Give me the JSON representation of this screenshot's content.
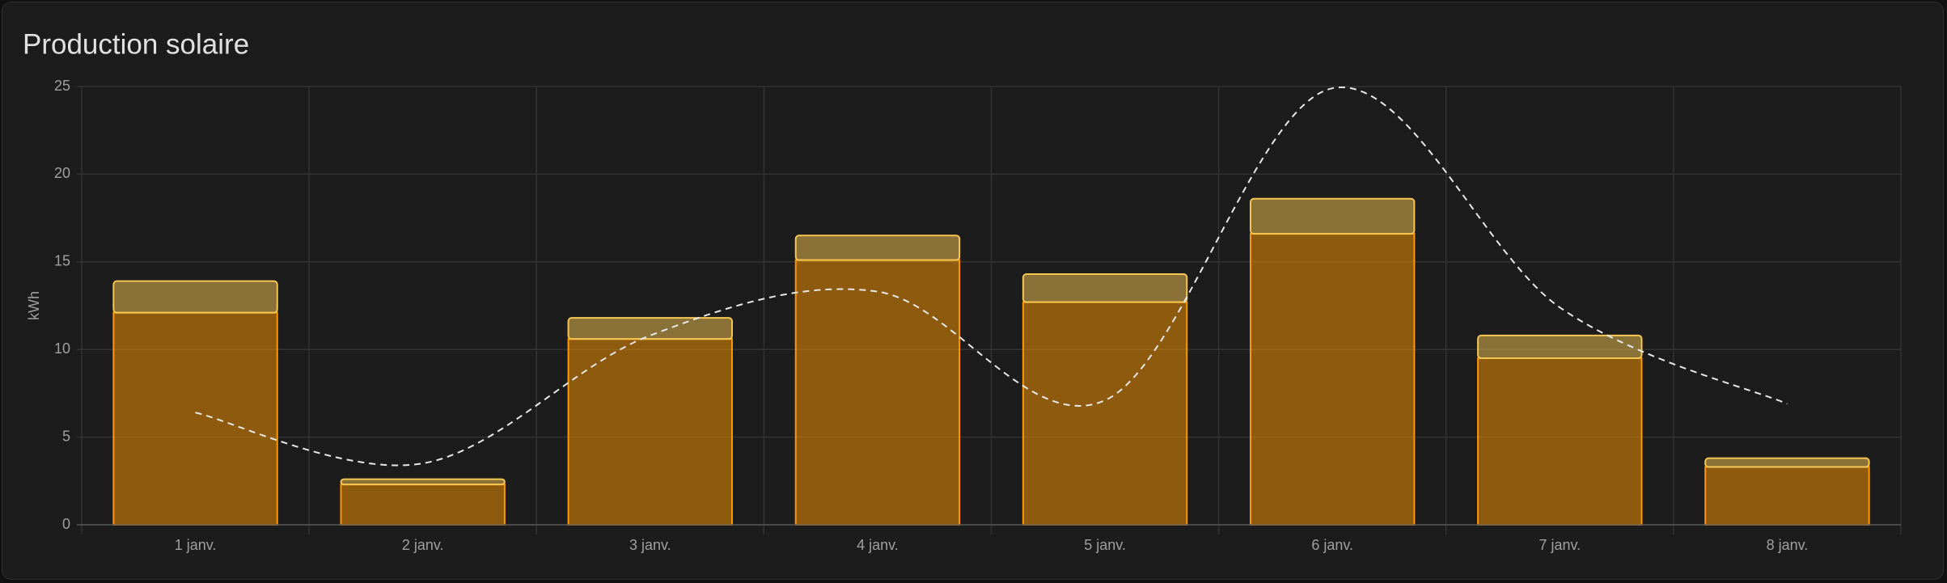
{
  "chart_data": {
    "type": "bar",
    "title": "Production solaire",
    "y_label": "kWh",
    "categories": [
      "1 janv.",
      "2 janv.",
      "3 janv.",
      "4 janv.",
      "5 janv.",
      "6 janv.",
      "7 janv.",
      "8 janv."
    ],
    "series": [
      {
        "color": "#ff9800",
        "values": [
          12.1,
          2.3,
          10.6,
          15.1,
          12.7,
          16.6,
          9.5,
          3.3
        ]
      },
      {
        "color": "#f5c652",
        "values": [
          1.8,
          0.3,
          1.2,
          1.4,
          1.6,
          2.0,
          1.3,
          0.5
        ]
      },
      {
        "type": "line",
        "color": "#e8e8e8",
        "dashed": true,
        "values": [
          6.4,
          3.5,
          10.8,
          13.3,
          7.1,
          24.9,
          12.4,
          6.9
        ]
      }
    ],
    "ylim": [
      0,
      25
    ],
    "yticks": [
      0,
      5,
      10,
      15,
      20,
      25
    ],
    "grid": true
  }
}
